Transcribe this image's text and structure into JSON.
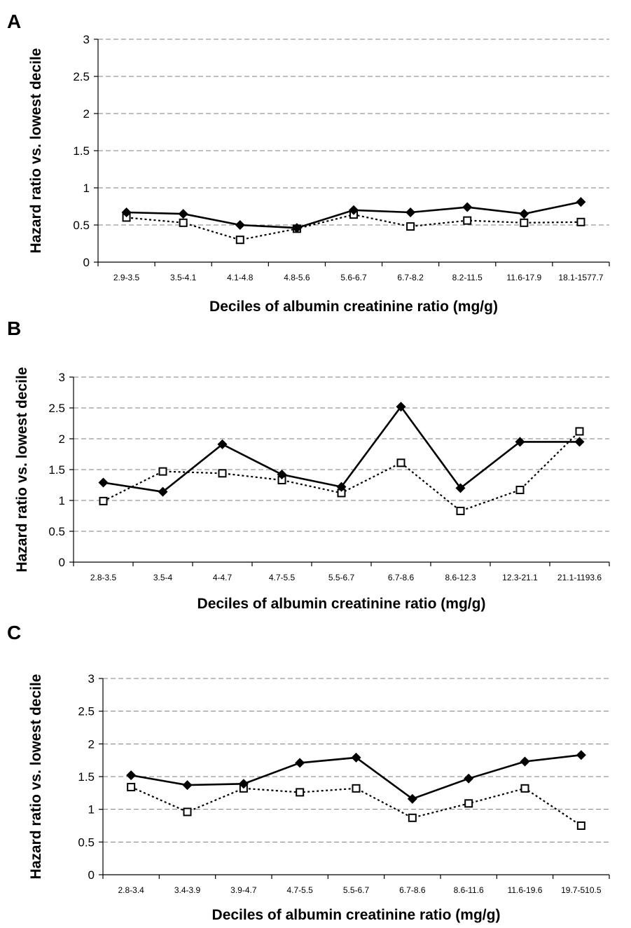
{
  "chart_data": [
    {
      "panel": "A",
      "type": "line",
      "xlabel": "Deciles of albumin creatinine ratio (mg/g)",
      "ylabel": "Hazard ratio vs. lowest decile",
      "ylim": [
        0,
        3
      ],
      "yticks": [
        "0",
        "0.5",
        "1",
        "1.5",
        "2",
        "2.5",
        "3"
      ],
      "grid": true,
      "categories": [
        "2.9-3.5",
        "3.5-4.1",
        "4.1-4.8",
        "4.8-5.6",
        "5.6-6.7",
        "6.7-8.2",
        "8.2-11.5",
        "11.6-17.9",
        "18.1-1577.7"
      ],
      "series": [
        {
          "style": "solid",
          "marker": "filled-diamond",
          "values": [
            0.67,
            0.65,
            0.5,
            0.46,
            0.7,
            0.67,
            0.74,
            0.65,
            0.81
          ]
        },
        {
          "style": "dotted",
          "marker": "open-square",
          "values": [
            0.6,
            0.53,
            0.3,
            0.45,
            0.64,
            0.48,
            0.56,
            0.53,
            0.54
          ]
        }
      ]
    },
    {
      "panel": "B",
      "type": "line",
      "xlabel": "Deciles of albumin creatinine ratio (mg/g)",
      "ylabel": "Hazard ratio vs. lowest decile",
      "ylim": [
        0,
        3
      ],
      "yticks": [
        "0",
        "0.5",
        "1",
        "1.5",
        "2",
        "2.5",
        "3"
      ],
      "grid": true,
      "categories": [
        "2.8-3.5",
        "3.5-4",
        "4-4.7",
        "4.7-5.5",
        "5.5-6.7",
        "6.7-8.6",
        "8.6-12.3",
        "12.3-21.1",
        "21.1-1193.6"
      ],
      "series": [
        {
          "style": "solid",
          "marker": "filled-diamond",
          "values": [
            1.29,
            1.14,
            1.91,
            1.42,
            1.22,
            2.52,
            1.2,
            1.95,
            1.95
          ]
        },
        {
          "style": "dotted",
          "marker": "open-square",
          "values": [
            0.99,
            1.47,
            1.44,
            1.33,
            1.12,
            1.61,
            0.83,
            1.17,
            2.12
          ]
        }
      ]
    },
    {
      "panel": "C",
      "type": "line",
      "xlabel": "Deciles of albumin creatinine ratio (mg/g)",
      "ylabel": "Hazard ratio vs. lowest decile",
      "ylim": [
        0,
        3
      ],
      "yticks": [
        "0",
        "0.5",
        "1",
        "1.5",
        "2",
        "2.5",
        "3"
      ],
      "grid": true,
      "categories": [
        "2.8-3.4",
        "3.4-3.9",
        "3.9-4.7",
        "4.7-5.5",
        "5.5-6.7",
        "6.7-8.6",
        "8.6-11.6",
        "11.6-19.6",
        "19.7-510.5"
      ],
      "series": [
        {
          "style": "solid",
          "marker": "filled-diamond",
          "values": [
            1.52,
            1.37,
            1.39,
            1.71,
            1.79,
            1.16,
            1.47,
            1.73,
            1.83
          ]
        },
        {
          "style": "dotted",
          "marker": "open-square",
          "values": [
            1.34,
            0.96,
            1.32,
            1.26,
            1.32,
            0.87,
            1.09,
            1.32,
            0.75
          ]
        }
      ]
    }
  ]
}
